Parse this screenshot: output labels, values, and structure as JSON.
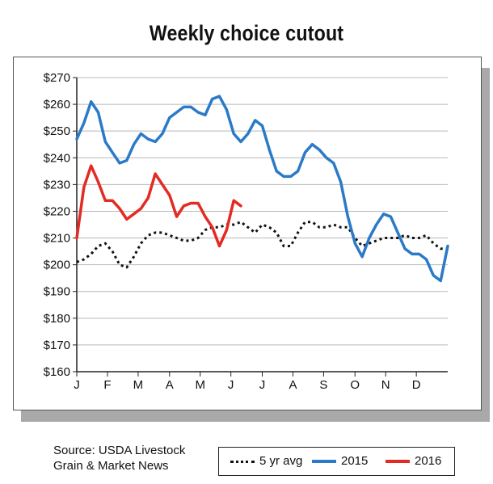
{
  "title": "Weekly choice cutout",
  "source": {
    "line1": "Source: USDA Livestock",
    "line2": "Grain & Market News"
  },
  "colors": {
    "avg": "#111111",
    "y2015": "#2b7ac8",
    "y2016": "#e32b23",
    "grid": "#b8b8b8"
  },
  "chart_data": {
    "type": "line",
    "title": "Weekly choice cutout",
    "xlabel": "",
    "ylabel": "",
    "ylim": [
      160,
      270
    ],
    "y_ticks": [
      "$270",
      "$260",
      "$250",
      "$240",
      "$230",
      "$220",
      "$210",
      "$200",
      "$190",
      "$180",
      "$170",
      "$160"
    ],
    "x_ticks": [
      "J",
      "F",
      "M",
      "A",
      "M",
      "J",
      "J",
      "A",
      "S",
      "O",
      "N",
      "D"
    ],
    "x_unit": "week",
    "grid": true,
    "legend_position": "bottom",
    "series": [
      {
        "name": "5 yr avg",
        "style": "dotted",
        "color": "#111111",
        "x": [
          1,
          2,
          3,
          4,
          5,
          6,
          7,
          8,
          9,
          10,
          11,
          12,
          13,
          14,
          15,
          16,
          17,
          18,
          19,
          20,
          21,
          22,
          23,
          24,
          25,
          26,
          27,
          28,
          29,
          30,
          31,
          32,
          33,
          34,
          35,
          36,
          37,
          38,
          39,
          40,
          41,
          42,
          43,
          44,
          45,
          46,
          47,
          48,
          49,
          50,
          51,
          52,
          53
        ],
        "values": [
          201,
          202,
          204,
          207,
          208,
          205,
          200,
          199,
          203,
          208,
          211,
          212,
          212,
          211,
          210,
          209,
          209,
          210,
          213,
          214,
          214,
          215,
          215,
          216,
          214,
          212,
          215,
          214,
          212,
          207,
          207,
          212,
          216,
          216,
          214,
          214,
          215,
          214,
          214,
          210,
          207,
          208,
          209,
          210,
          210,
          210,
          211,
          210,
          210,
          211,
          208,
          206,
          206
        ]
      },
      {
        "name": "2015",
        "style": "solid",
        "color": "#2b7ac8",
        "x": [
          1,
          2,
          3,
          4,
          5,
          6,
          7,
          8,
          9,
          10,
          11,
          12,
          13,
          14,
          15,
          16,
          17,
          18,
          19,
          20,
          21,
          22,
          23,
          24,
          25,
          26,
          27,
          28,
          29,
          30,
          31,
          32,
          33,
          34,
          35,
          36,
          37,
          38,
          39,
          40,
          41,
          42,
          43,
          44,
          45,
          46,
          47,
          48,
          49,
          50,
          51,
          52,
          53
        ],
        "values": [
          247,
          253,
          261,
          257,
          246,
          242,
          238,
          239,
          245,
          249,
          247,
          246,
          249,
          255,
          257,
          259,
          259,
          257,
          256,
          262,
          263,
          258,
          249,
          246,
          249,
          254,
          252,
          243,
          235,
          233,
          233,
          235,
          242,
          245,
          243,
          240,
          238,
          231,
          218,
          208,
          203,
          210,
          215,
          219,
          218,
          212,
          206,
          204,
          204,
          202,
          196,
          194,
          207
        ]
      },
      {
        "name": "2016",
        "style": "solid",
        "color": "#e32b23",
        "x": [
          1,
          2,
          3,
          4,
          5,
          6,
          7,
          8,
          9,
          10,
          11,
          12,
          13,
          14,
          15,
          16,
          17,
          18,
          19,
          20,
          21,
          22,
          23,
          24
        ],
        "values": [
          210,
          229,
          237,
          231,
          224,
          224,
          221,
          217,
          219,
          221,
          225,
          234,
          230,
          226,
          218,
          222,
          223,
          223,
          218,
          214,
          207,
          213,
          224,
          222
        ]
      }
    ]
  },
  "legend": [
    {
      "label": "5 yr avg",
      "color": "#111111",
      "style": "dotted"
    },
    {
      "label": "2015",
      "color": "#2b7ac8",
      "style": "solid"
    },
    {
      "label": "2016",
      "color": "#e32b23",
      "style": "solid"
    }
  ]
}
